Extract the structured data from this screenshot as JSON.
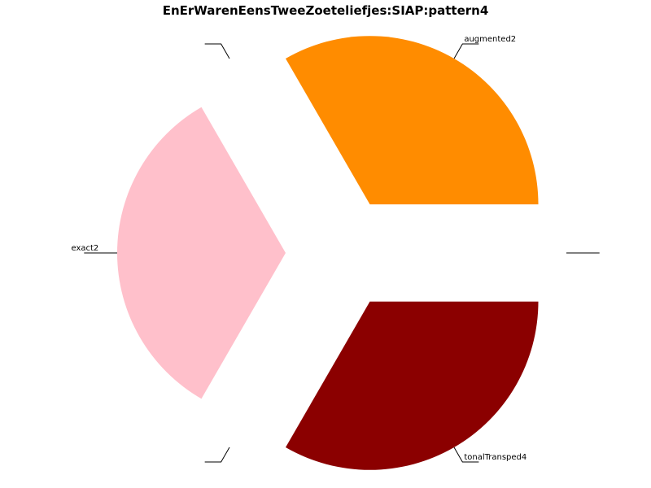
{
  "chart_data": {
    "type": "pie",
    "title": "EnErWarenEensTweeZoeteliefjes:SIAP:pattern4",
    "start_angle_deg": 0,
    "direction": "counterclockwise",
    "slices": [
      {
        "label": "",
        "value": 0.0,
        "color": "#ffffff"
      },
      {
        "label": "augmented2",
        "value": 1,
        "color": "#ff8c00"
      },
      {
        "label": "",
        "value": 0.0,
        "color": "#ffffff"
      },
      {
        "label": "exact2",
        "value": 1,
        "color": "#ffc0cb"
      },
      {
        "label": "",
        "value": 0.0,
        "color": "#ffffff"
      },
      {
        "label": "tonalTransped4",
        "value": 1,
        "color": "#8b0000"
      }
    ],
    "explode": true,
    "legend": "none"
  }
}
